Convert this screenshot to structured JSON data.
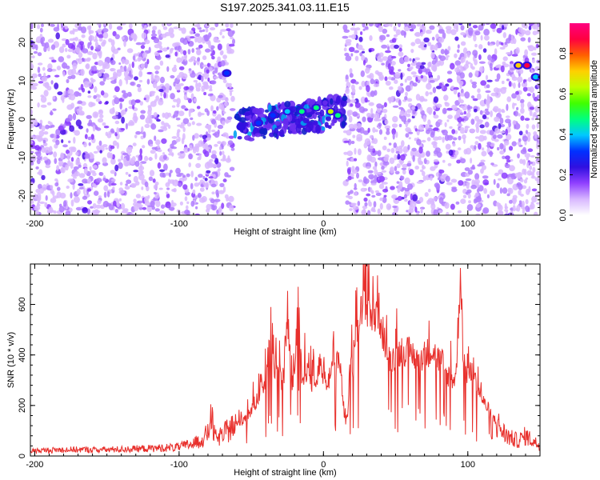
{
  "title": "S197.2025.341.03.11.E15",
  "colors": {
    "frame": "#000000",
    "line": "#e8302c",
    "scatter_base": "#8c3cff",
    "scatter_light": "#d9b8ff",
    "background": "#ffffff"
  },
  "chart_data": [
    {
      "type": "heatmap",
      "xlabel": "Height of straight line (km)",
      "ylabel": "Frequency (Hz)",
      "xlim": [
        -203,
        150
      ],
      "ylim": [
        -25,
        25
      ],
      "xticks": [
        -200,
        -100,
        0,
        100
      ],
      "xtick_labels": [
        "-200",
        "-100",
        "0",
        "100"
      ],
      "yticks": [
        -20,
        -10,
        0,
        10,
        20
      ],
      "ytick_labels": [
        "-20",
        "-10",
        "0",
        "10",
        "20"
      ],
      "colorbar": {
        "label": "Normalized spectral amplitude",
        "range": [
          0,
          0.95
        ],
        "ticks": [
          0.0,
          0.2,
          0.4,
          0.6,
          0.8
        ],
        "tick_labels": [
          "0.0",
          "0.2",
          "0.4",
          "0.6",
          "0.8"
        ],
        "colors": [
          "#ffffff",
          "#d8b8ff",
          "#9040ff",
          "#3010e0",
          "#0030ff",
          "#00c8ff",
          "#00ff80",
          "#40ff00",
          "#c0ff00",
          "#ffd000",
          "#ff6000",
          "#ff0040",
          "#ff0080"
        ]
      },
      "noise_regions_km": [
        [
          -203,
          -72
        ],
        [
          -72,
          -62
        ],
        [
          15,
          150
        ]
      ],
      "signal_band": {
        "x_range_km": [
          -62,
          15
        ],
        "freq_center_hz": 0,
        "freq_spread_hz": 4
      },
      "features": [
        {
          "x_km": -67,
          "freq_hz": 12,
          "amplitude": 0.3
        },
        {
          "x_km": -57,
          "freq_hz": -2,
          "amplitude": 0.25
        },
        {
          "x_km": -45,
          "freq_hz": -1,
          "amplitude": 0.3
        },
        {
          "x_km": -35,
          "freq_hz": 1,
          "amplitude": 0.35
        },
        {
          "x_km": -25,
          "freq_hz": 2,
          "amplitude": 0.4
        },
        {
          "x_km": -15,
          "freq_hz": 2,
          "amplitude": 0.45
        },
        {
          "x_km": -5,
          "freq_hz": 3,
          "amplitude": 0.5
        },
        {
          "x_km": 5,
          "freq_hz": 2,
          "amplitude": 0.6
        },
        {
          "x_km": 10,
          "freq_hz": 1,
          "amplitude": 0.5
        },
        {
          "x_km": 135,
          "freq_hz": 14,
          "amplitude": 0.7
        },
        {
          "x_km": 141,
          "freq_hz": 14,
          "amplitude": 0.9
        },
        {
          "x_km": 147,
          "freq_hz": 11,
          "amplitude": 0.4
        }
      ]
    },
    {
      "type": "line",
      "xlabel": "Height of straight line (km)",
      "ylabel": "SNR (10 * v/v)",
      "xlim": [
        -203,
        150
      ],
      "ylim": [
        0,
        760
      ],
      "xticks": [
        -200,
        -100,
        0,
        100
      ],
      "xtick_labels": [
        "-200",
        "-100",
        "0",
        "100"
      ],
      "yticks": [
        0,
        200,
        400,
        600
      ],
      "ytick_labels": [
        "0",
        "200",
        "400",
        "600"
      ],
      "series": [
        {
          "name": "SNR",
          "x": [
            -203,
            -180,
            -150,
            -120,
            -100,
            -90,
            -85,
            -80,
            -78,
            -75,
            -70,
            -65,
            -60,
            -55,
            -50,
            -45,
            -40,
            -38,
            -35,
            -30,
            -28,
            -25,
            -22,
            -20,
            -17,
            -15,
            -12,
            -10,
            -8,
            -5,
            -3,
            0,
            3,
            5,
            8,
            10,
            12,
            15,
            17,
            18,
            20,
            22,
            24,
            26,
            30,
            35,
            38,
            40,
            45,
            50,
            55,
            60,
            65,
            70,
            75,
            80,
            83,
            85,
            88,
            90,
            92,
            95,
            97,
            100,
            103,
            105,
            108,
            110,
            115,
            120,
            125,
            130,
            135,
            140,
            145,
            150
          ],
          "values": [
            20,
            25,
            25,
            30,
            35,
            50,
            60,
            90,
            160,
            70,
            80,
            110,
            120,
            150,
            180,
            240,
            300,
            420,
            380,
            300,
            260,
            590,
            280,
            320,
            650,
            300,
            340,
            360,
            280,
            290,
            380,
            320,
            270,
            360,
            340,
            400,
            320,
            130,
            150,
            380,
            340,
            470,
            550,
            560,
            600,
            540,
            580,
            520,
            380,
            400,
            420,
            410,
            390,
            400,
            420,
            380,
            370,
            320,
            320,
            300,
            330,
            760,
            360,
            320,
            330,
            300,
            250,
            220,
            180,
            130,
            90,
            70,
            60,
            80,
            60,
            40
          ]
        }
      ]
    }
  ]
}
